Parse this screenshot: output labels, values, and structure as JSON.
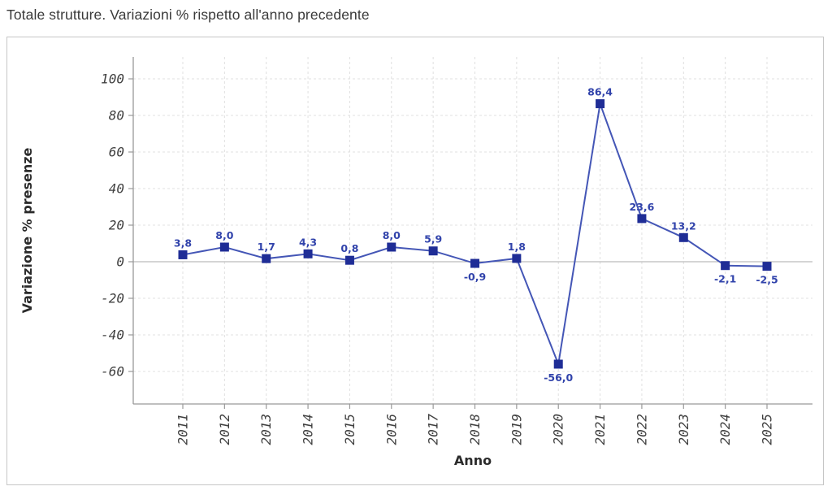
{
  "page_title": "Totale strutture. Variazioni % rispetto all'anno precedente",
  "chart_data": {
    "type": "line",
    "title": "Totale strutture. Variazioni % rispetto all'anno precedente",
    "xlabel": "Anno",
    "ylabel": "Variazione % presenze",
    "categories": [
      "2011",
      "2012",
      "2013",
      "2014",
      "2015",
      "2016",
      "2017",
      "2018",
      "2019",
      "2020",
      "2021",
      "2022",
      "2023",
      "2024",
      "2025"
    ],
    "values": [
      3.8,
      8.0,
      1.7,
      4.3,
      0.8,
      8.0,
      5.9,
      -0.9,
      1.8,
      -56.0,
      86.4,
      23.6,
      13.2,
      -2.1,
      -2.5
    ],
    "point_labels": [
      "3,8",
      "8,0",
      "1,7",
      "4,3",
      "0,8",
      "8,0",
      "5,9",
      "-0,9",
      "1,8",
      "-56,0",
      "86,4",
      "23,6",
      "13,2",
      "-2,1",
      "-2,5"
    ],
    "label_position": [
      "above",
      "above",
      "above",
      "above",
      "above",
      "above",
      "above",
      "below",
      "above",
      "below",
      "above",
      "above",
      "above",
      "below",
      "below"
    ],
    "y_ticks": [
      100,
      80,
      60,
      40,
      20,
      0,
      -20,
      -40,
      -60
    ],
    "ylim": [
      -78,
      112
    ],
    "grid": true,
    "legend_position": "none",
    "colors": {
      "line": "#4456b6",
      "marker": "#1f2d96",
      "point_label": "#3143ab",
      "grid": "#e0e0e0",
      "axis": "#999999",
      "zero_line": "#ababab",
      "tick_text": "#3f3f3f",
      "title_text": "#3a3a3a"
    }
  }
}
